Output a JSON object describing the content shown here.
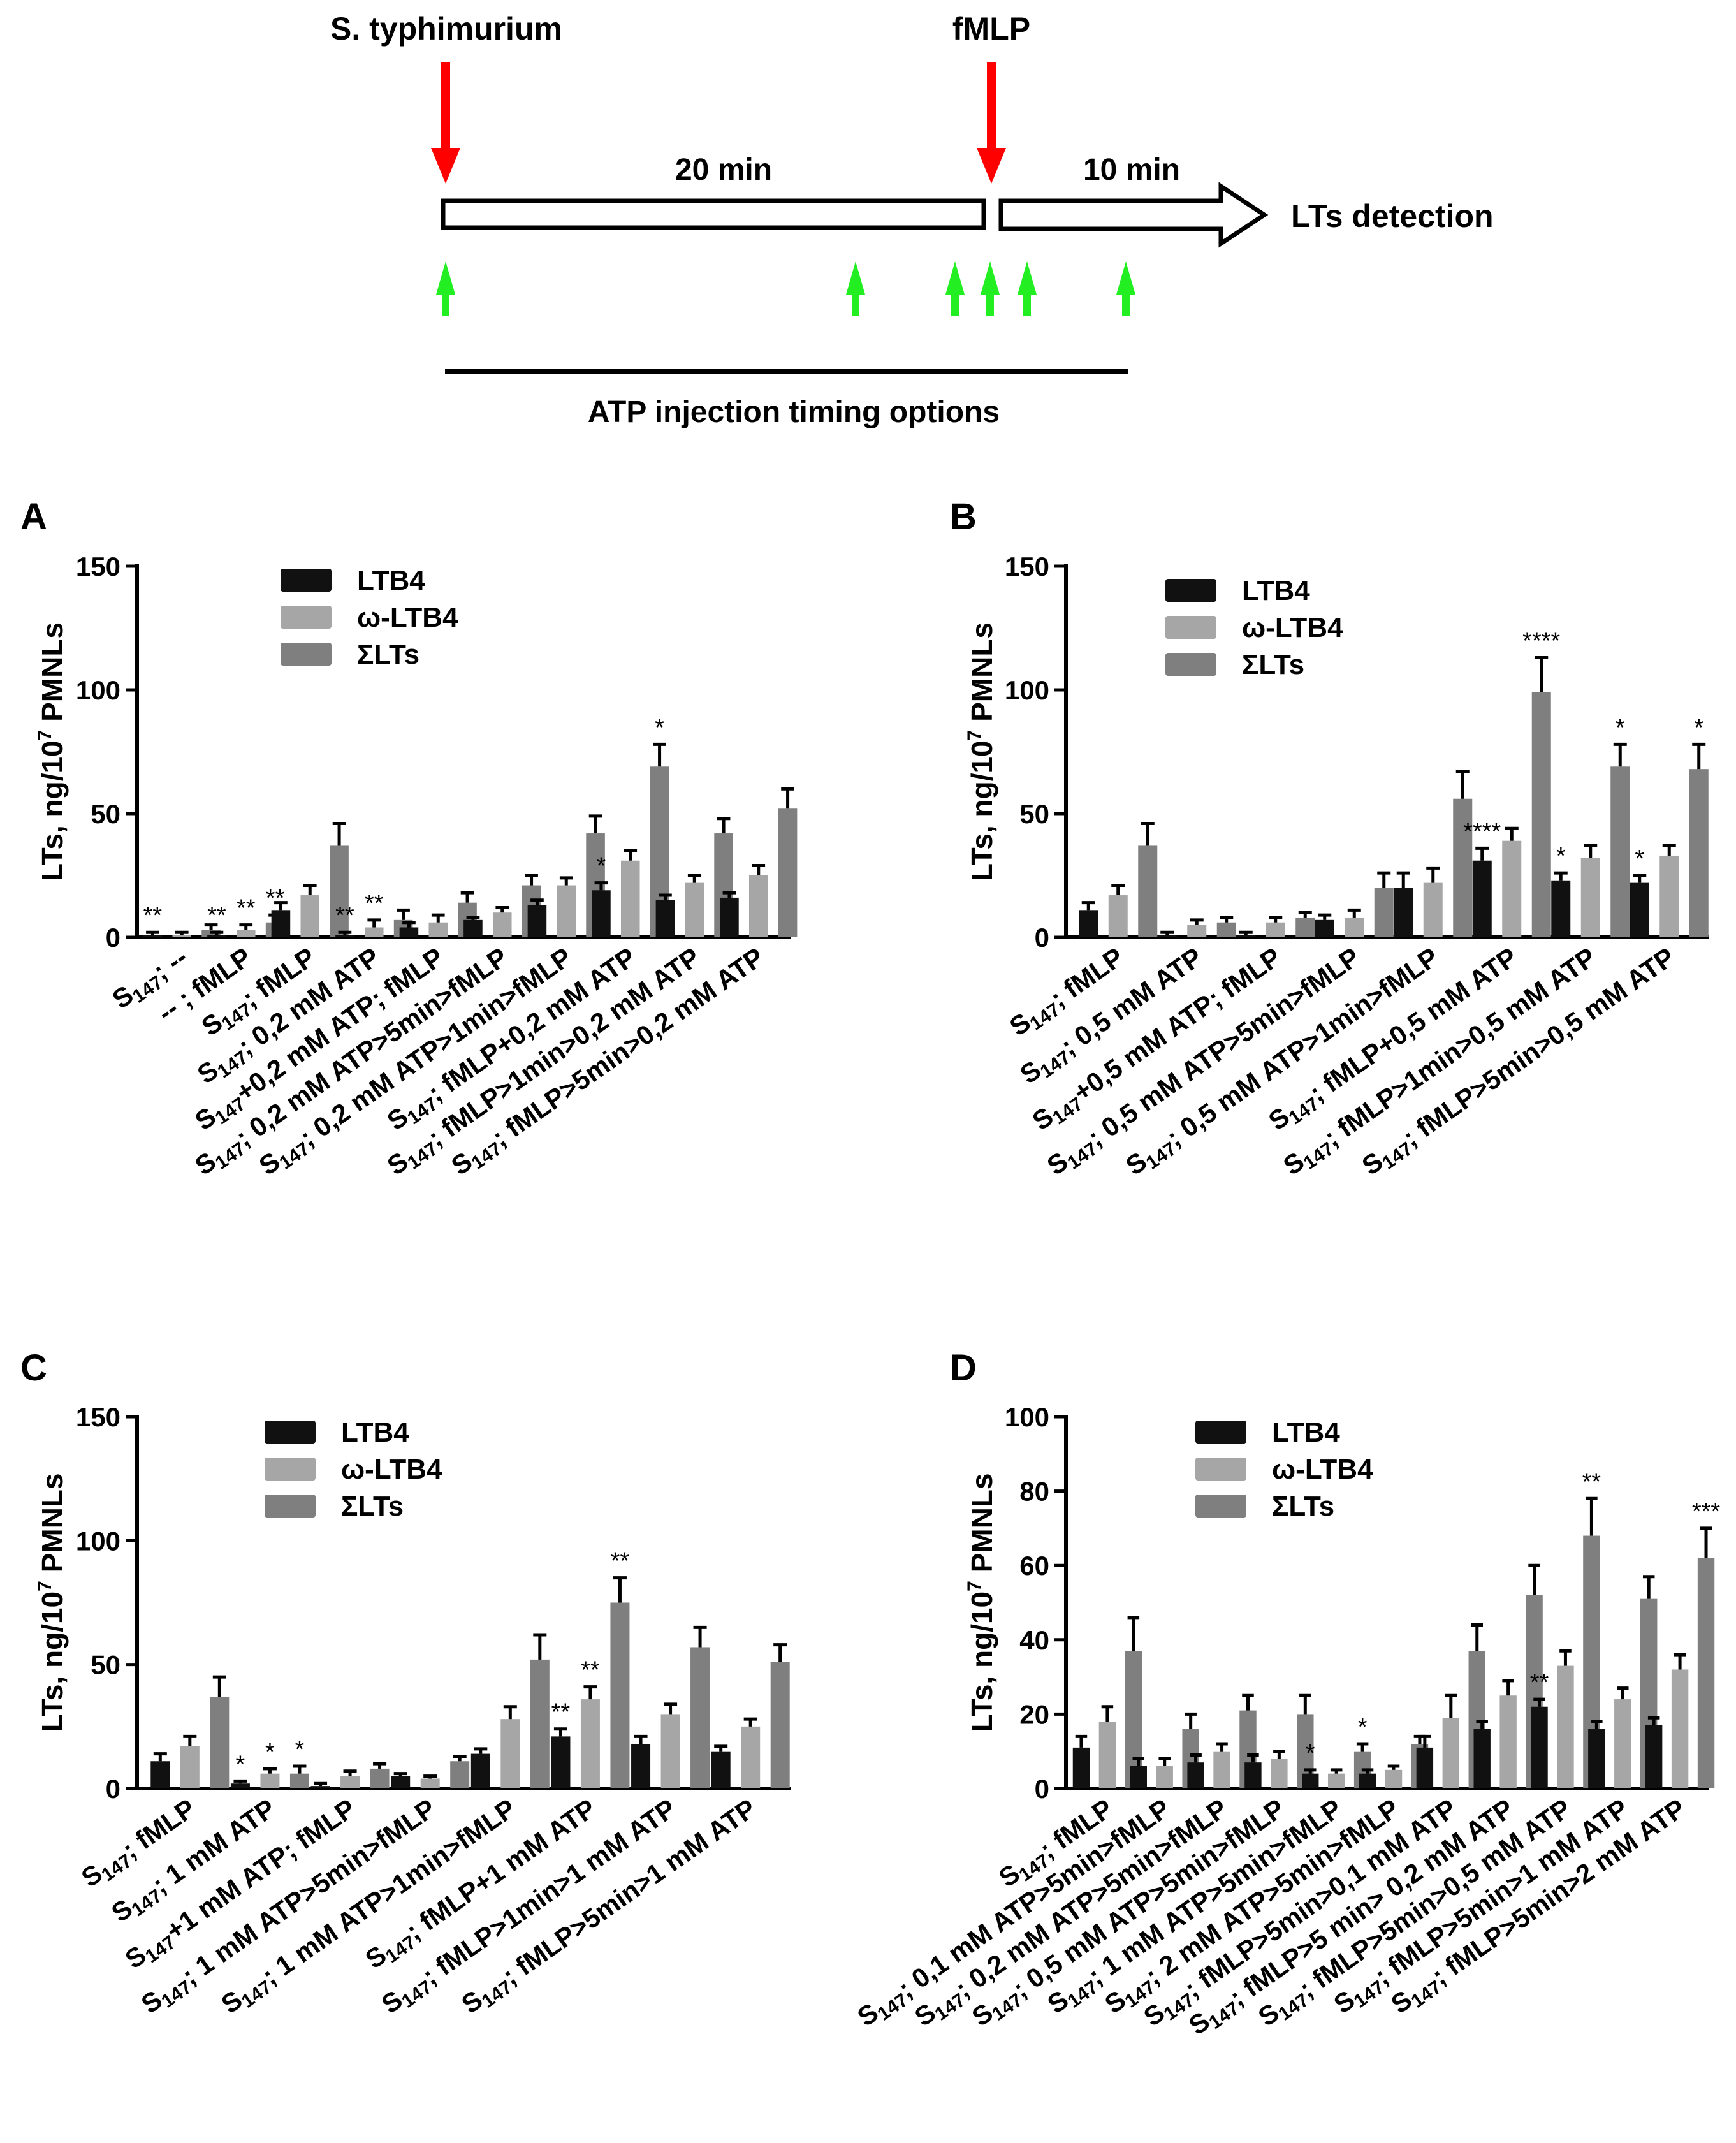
{
  "diagram": {
    "label_stimulus1": "S. typhimurium",
    "label_stimulus2": "fMLP",
    "label_t1": "20 min",
    "label_t2": "10 min",
    "label_detection": "LTs detection",
    "label_atp_options": "ATP injection timing options"
  },
  "legend_labels": [
    "LTB4",
    "ω-LTB4",
    "ΣLTs"
  ],
  "colors": {
    "LTB4": "#111111",
    "omega": "#a6a6a6",
    "sum": "#7f7f7f",
    "red_arrow": "#ff0000",
    "green_arrow": "#22ee22"
  },
  "chart_data": [
    {
      "panel": "A",
      "type": "bar",
      "ylabel": "LTs, ng/10^7 PMNLs",
      "ylim": [
        0,
        150
      ],
      "yticks": [
        0,
        50,
        100,
        150
      ],
      "series_names": [
        "LTB4",
        "ω-LTB4",
        "ΣLTs"
      ],
      "categories": [
        "S147; --",
        "-- ; fMLP",
        "S147; fMLP",
        "S147; 0,2 mM ATP",
        "S147+0,2 mM ATP; fMLP",
        "S147; 0,2 mM ATP>5min>fMLP",
        "S147; 0,2 mM ATP>1min>fMLP",
        "S147; fMLP+0,2 mM ATP",
        "S147; fMLP>1min>0,2 mM ATP",
        "S147; fMLP>5min>0,2 mM ATP"
      ],
      "series": [
        {
          "name": "LTB4",
          "values": [
            1,
            1,
            11,
            1,
            4,
            7,
            13,
            19,
            15,
            16
          ],
          "errors": [
            1,
            1,
            3,
            1,
            2,
            1,
            2,
            3,
            2,
            2
          ],
          "sig": [
            "**",
            "**",
            "",
            "**",
            "",
            "",
            "",
            "*",
            "",
            ""
          ]
        },
        {
          "name": "ω-LTB4",
          "values": [
            1,
            3,
            17,
            4,
            6,
            10,
            21,
            31,
            22,
            25
          ],
          "errors": [
            1,
            2,
            4,
            3,
            3,
            2,
            3,
            4,
            3,
            4
          ],
          "sig": [
            "",
            "**",
            "",
            "**",
            "",
            "",
            "",
            "",
            "",
            ""
          ]
        },
        {
          "name": "ΣLTs",
          "values": [
            3,
            6,
            37,
            7,
            14,
            21,
            42,
            69,
            42,
            52
          ],
          "errors": [
            2,
            3,
            9,
            4,
            4,
            4,
            7,
            9,
            6,
            8
          ],
          "sig": [
            "",
            "**",
            "",
            "",
            "",
            "",
            "",
            "*",
            "",
            ""
          ]
        }
      ]
    },
    {
      "panel": "B",
      "type": "bar",
      "ylabel": "LTs, ng/10^7 PMNLs",
      "ylim": [
        0,
        150
      ],
      "yticks": [
        0,
        50,
        100,
        150
      ],
      "series_names": [
        "LTB4",
        "ω-LTB4",
        "ΣLTs"
      ],
      "categories": [
        "S147; fMLP",
        "S147; 0,5 mM ATP",
        "S147+0,5 mM ATP; fMLP",
        "S147; 0,5 mM ATP>5min>fMLP",
        "S147; 0,5 mM ATP>1min>fMLP",
        "S147; fMLP+0,5 mM ATP",
        "S147; fMLP>1min>0,5 mM ATP",
        "S147; fMLP>5min>0,5 mM ATP"
      ],
      "series": [
        {
          "name": "LTB4",
          "values": [
            11,
            1,
            1,
            7,
            20,
            31,
            23,
            22
          ],
          "errors": [
            3,
            1,
            1,
            2,
            6,
            5,
            3,
            3
          ],
          "sig": [
            "",
            "",
            "",
            "",
            "",
            "****",
            "*",
            "*"
          ]
        },
        {
          "name": "ω-LTB4",
          "values": [
            17,
            5,
            6,
            8,
            22,
            39,
            32,
            33
          ],
          "errors": [
            4,
            2,
            2,
            3,
            6,
            5,
            5,
            4
          ],
          "sig": [
            "",
            "",
            "",
            "",
            "",
            "",
            "",
            ""
          ]
        },
        {
          "name": "ΣLTs",
          "values": [
            37,
            6,
            8,
            20,
            56,
            99,
            69,
            68
          ],
          "errors": [
            9,
            2,
            2,
            6,
            11,
            14,
            9,
            10
          ],
          "sig": [
            "",
            "",
            "",
            "",
            "",
            "****",
            "*",
            "*"
          ]
        }
      ]
    },
    {
      "panel": "C",
      "type": "bar",
      "ylabel": "LTs, ng/10^7 PMNLs",
      "ylim": [
        0,
        150
      ],
      "yticks": [
        0,
        50,
        100,
        150
      ],
      "series_names": [
        "LTB4",
        "ω-LTB4",
        "ΣLTs"
      ],
      "categories": [
        "S147; fMLP",
        "S147; 1 mM ATP",
        "S147+1 mM ATP; fMLP",
        "S147; 1 mM ATP>5min>fMLP",
        "S147; 1 mM ATP>1min>fMLP",
        "S147; fMLP+1 mM ATP",
        "S147; fMLP>1min>1 mM ATP",
        "S147; fMLP>5min>1 mM ATP"
      ],
      "series": [
        {
          "name": "LTB4",
          "values": [
            11,
            2,
            1,
            5,
            14,
            21,
            18,
            15
          ],
          "errors": [
            3,
            1,
            1,
            1,
            2,
            3,
            3,
            2
          ],
          "sig": [
            "",
            "*",
            "",
            "",
            "",
            "**",
            "",
            ""
          ]
        },
        {
          "name": "ω-LTB4",
          "values": [
            17,
            6,
            5,
            4,
            28,
            36,
            30,
            25
          ],
          "errors": [
            4,
            2,
            2,
            1,
            5,
            5,
            4,
            3
          ],
          "sig": [
            "",
            "*",
            "",
            "",
            "",
            "**",
            "",
            ""
          ]
        },
        {
          "name": "ΣLTs",
          "values": [
            37,
            6,
            8,
            11,
            52,
            75,
            57,
            51
          ],
          "errors": [
            8,
            3,
            2,
            2,
            10,
            10,
            8,
            7
          ],
          "sig": [
            "",
            "*",
            "",
            "",
            "",
            "**",
            "",
            ""
          ]
        }
      ]
    },
    {
      "panel": "D",
      "type": "bar",
      "ylabel": "LTs, ng/10^7 PMNLs",
      "ylim": [
        0,
        100
      ],
      "yticks": [
        0,
        20,
        40,
        60,
        80,
        100
      ],
      "series_names": [
        "LTB4",
        "ω-LTB4",
        "ΣLTs"
      ],
      "categories": [
        "S147; fMLP",
        "S147; 0,1 mM ATP>5min>fMLP",
        "S147; 0,2 mM ATP>5min>fMLP",
        "S147; 0,5 mM ATP>5min>fMLP",
        "S147; 1 mM ATP>5min>fMLP",
        "S147; 2 mM ATP>5min>fMLP",
        "S147; fMLP>5min>0,1 mM ATP",
        "S147; fMLP>5 min> 0,2 mM ATP",
        "S147; fMLP>5min>0,5 mM ATP",
        "S147; fMLP>5min>1 mM ATP",
        "S147; fMLP>5min>2 mM ATP"
      ],
      "series": [
        {
          "name": "LTB4",
          "values": [
            11,
            6,
            7,
            7,
            4,
            4,
            11,
            16,
            22,
            16,
            17
          ],
          "errors": [
            3,
            2,
            2,
            2,
            1,
            1,
            3,
            2,
            2,
            2,
            2
          ],
          "sig": [
            "",
            "",
            "",
            "",
            "*",
            "",
            "",
            "",
            "**",
            "",
            ""
          ]
        },
        {
          "name": "ω-LTB4",
          "values": [
            18,
            6,
            10,
            8,
            4,
            5,
            19,
            25,
            33,
            24,
            32
          ],
          "errors": [
            4,
            2,
            2,
            2,
            1,
            1,
            6,
            4,
            4,
            3,
            4
          ],
          "sig": [
            "",
            "",
            "",
            "",
            "",
            "",
            "",
            "",
            "",
            "",
            ""
          ]
        },
        {
          "name": "ΣLTs",
          "values": [
            37,
            16,
            21,
            20,
            10,
            12,
            37,
            52,
            68,
            51,
            62
          ],
          "errors": [
            9,
            4,
            4,
            5,
            2,
            2,
            7,
            8,
            10,
            6,
            8
          ],
          "sig": [
            "",
            "",
            "",
            "",
            "*",
            "",
            "",
            "",
            "**",
            "",
            "***"
          ]
        }
      ]
    }
  ]
}
